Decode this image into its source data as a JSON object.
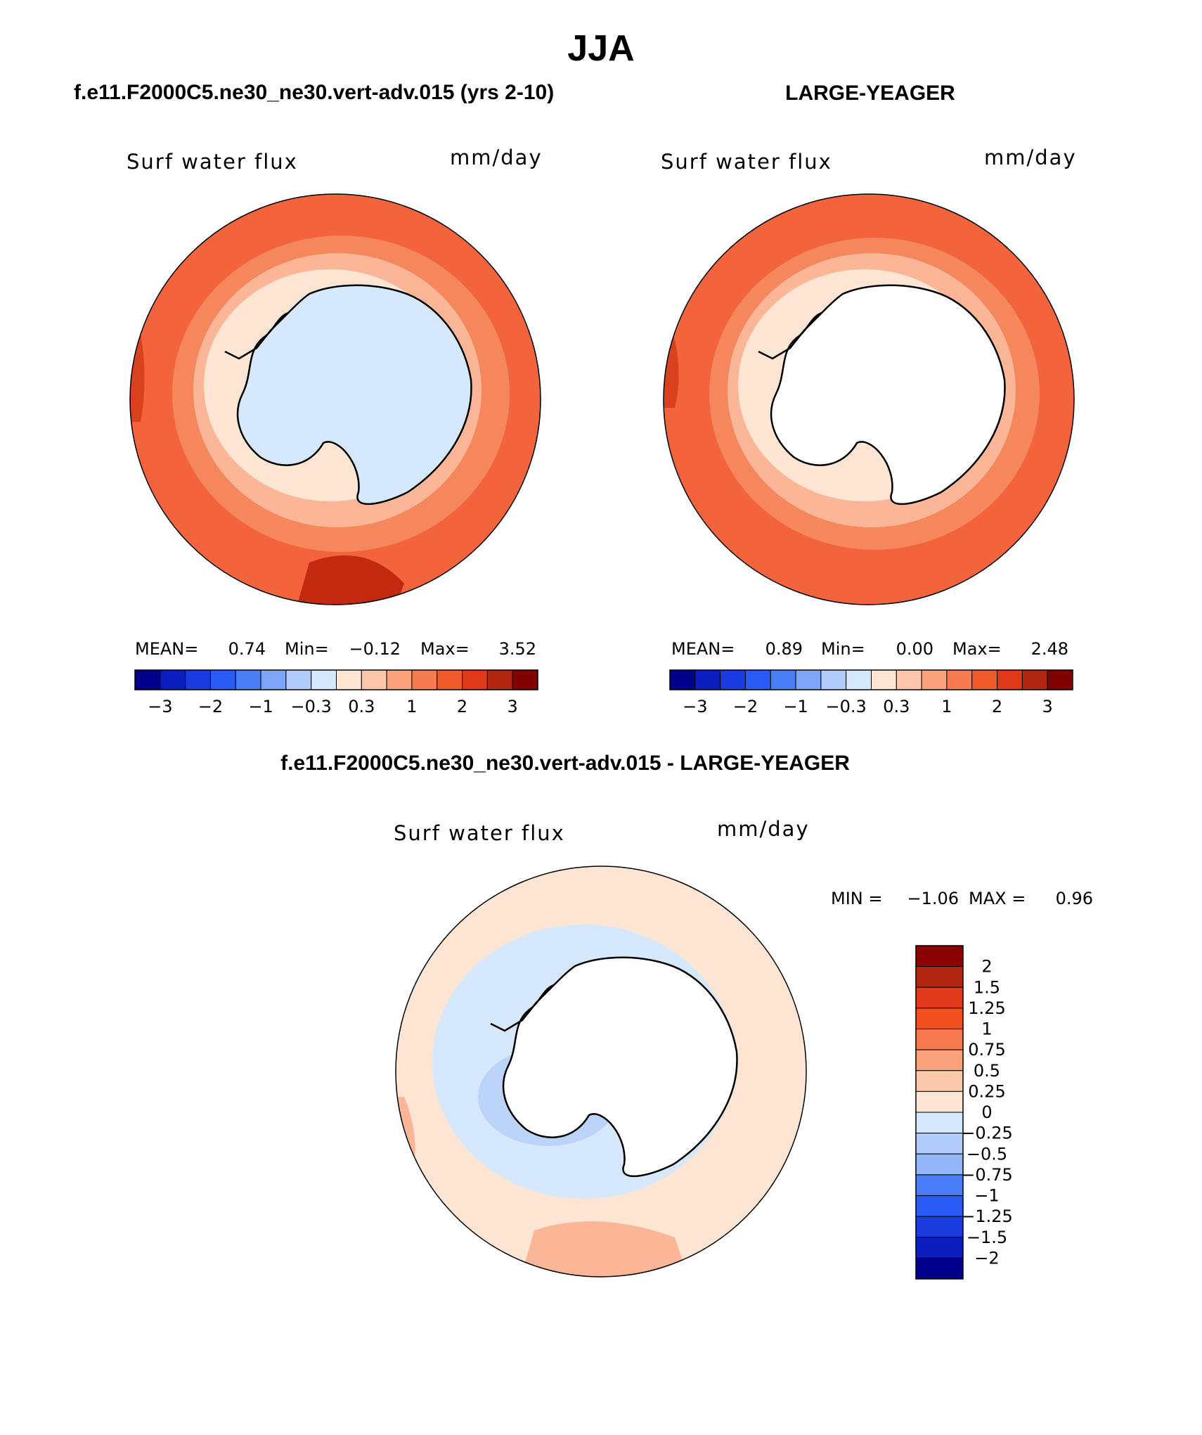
{
  "figure_title": "JJA",
  "colors": {
    "ocean_dark": "#f3643c",
    "ocean_mid": "#f5875d",
    "ocean_light": "#fbb597",
    "shelf": "#fde5d4",
    "land_ice_blue": "#d6e8fc",
    "land_white": "#ffffff",
    "coast": "#000000"
  },
  "chart_data": [
    {
      "type": "heatmap",
      "projection": "south-polar-stereographic",
      "case_title": "f.e11.F2000C5.ne30_ne30.vert-adv.015 (yrs 2-10)",
      "variable": "Surf water flux",
      "units": "mm/day",
      "stats": {
        "mean_label": "MEAN=",
        "mean": "0.74",
        "min_label": "Min=",
        "min": "−0.12",
        "max_label": "Max=",
        "max": "3.52"
      },
      "colorbar": {
        "orientation": "horizontal",
        "tick_labels": [
          "−3",
          "−2",
          "−1",
          "−0.3",
          "0.3",
          "1",
          "2",
          "3"
        ],
        "colors": [
          "#00008b",
          "#0a1ec0",
          "#1a3be0",
          "#2a5bf5",
          "#4a7df7",
          "#7ea5f8",
          "#b1cbfa",
          "#d6e8fc",
          "#fde5d4",
          "#fcc7ac",
          "#fba27c",
          "#f67b51",
          "#f15a2c",
          "#e0391a",
          "#b22510",
          "#800000"
        ]
      }
    },
    {
      "type": "heatmap",
      "projection": "south-polar-stereographic",
      "case_title": "LARGE-YEAGER",
      "variable": "Surf water flux",
      "units": "mm/day",
      "stats": {
        "mean_label": "MEAN=",
        "mean": "0.89",
        "min_label": "Min=",
        "min": "0.00",
        "max_label": "Max=",
        "max": "2.48"
      },
      "colorbar": {
        "orientation": "horizontal",
        "tick_labels": [
          "−3",
          "−2",
          "−1",
          "−0.3",
          "0.3",
          "1",
          "2",
          "3"
        ],
        "colors": [
          "#00008b",
          "#0a1ec0",
          "#1a3be0",
          "#2a5bf5",
          "#4a7df7",
          "#7ea5f8",
          "#b1cbfa",
          "#d6e8fc",
          "#fde5d4",
          "#fcc7ac",
          "#fba27c",
          "#f67b51",
          "#f15a2c",
          "#e0391a",
          "#b22510",
          "#800000"
        ]
      }
    },
    {
      "type": "heatmap",
      "projection": "south-polar-stereographic",
      "case_title": "f.e11.F2000C5.ne30_ne30.vert-adv.015 - LARGE-YEAGER",
      "variable": "Surf water flux",
      "units": "mm/day",
      "stats": {
        "min_label": "MIN =",
        "min": "−1.06",
        "max_label": "MAX =",
        "max": "0.96"
      },
      "colorbar": {
        "orientation": "vertical",
        "tick_labels": [
          "2",
          "1.5",
          "1.25",
          "1",
          "0.75",
          "0.5",
          "0.25",
          "0",
          "−0.25",
          "−0.5",
          "−0.75",
          "−1",
          "−1.25",
          "−1.5",
          "−2"
        ],
        "colors": [
          "#8b0000",
          "#b22510",
          "#e0391a",
          "#f3501f",
          "#f67b51",
          "#fba27c",
          "#fcc7ac",
          "#fde5d4",
          "#d6e8fc",
          "#b1cbfa",
          "#93b6f8",
          "#4a7df7",
          "#2a5bf5",
          "#1a3be0",
          "#0a1ec0",
          "#00008b"
        ]
      }
    }
  ]
}
